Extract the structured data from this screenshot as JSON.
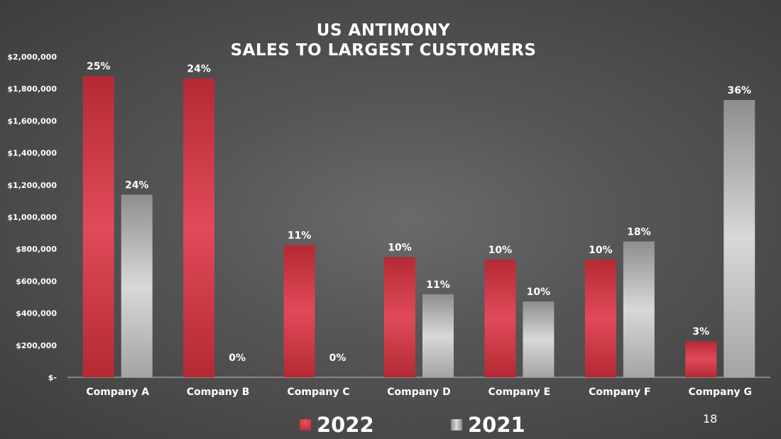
{
  "page_number": "18",
  "chart_data": {
    "type": "bar",
    "title_lines": [
      "US ANTIMONY",
      "SALES TO LARGEST CUSTOMERS"
    ],
    "categories": [
      "Company A",
      "Company B",
      "Company C",
      "Company D",
      "Company E",
      "Company F",
      "Company G"
    ],
    "series": [
      {
        "name": "2022",
        "color": "#c8323c",
        "values": [
          1880000,
          1865000,
          825000,
          750000,
          735000,
          735000,
          225000
        ],
        "labels": [
          "25%",
          "24%",
          "11%",
          "10%",
          "10%",
          "10%",
          "3%"
        ]
      },
      {
        "name": "2021",
        "color": "#b4b4b4",
        "values": [
          1140000,
          0,
          0,
          518000,
          473000,
          848000,
          1730000
        ],
        "labels": [
          "24%",
          "0%",
          "0%",
          "11%",
          "10%",
          "18%",
          "36%"
        ]
      }
    ],
    "ylim": [
      0,
      2000000
    ],
    "yticks": [
      0,
      200000,
      400000,
      600000,
      800000,
      1000000,
      1200000,
      1400000,
      1600000,
      1800000,
      2000000
    ],
    "ytick_labels": [
      "$-",
      "$200,000",
      "$400,000",
      "$600,000",
      "$800,000",
      "$1,000,000",
      "$1,200,000",
      "$1,400,000",
      "$1,600,000",
      "$1,800,000",
      "$2,000,000"
    ],
    "legend_position": "bottom",
    "xlabel": "",
    "ylabel": ""
  }
}
